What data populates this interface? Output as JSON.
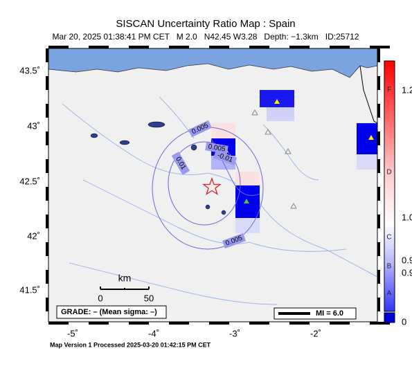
{
  "header": {
    "title": "SISCAN Uncertainty Ratio Map : Spain",
    "subtitle": "Mar 20, 2025 01:38:41 PM CET   M 2.0   N42.45 W3.28   Depth: −1.3km   ID:25712"
  },
  "map": {
    "lat_labels": [
      "43.5˚",
      "43˚",
      "42.5˚",
      "42˚",
      "41.5˚"
    ],
    "lon_labels": [
      "-5˚",
      "-4˚",
      "-3˚",
      "-2˚"
    ],
    "contour_labels": [
      "0.005",
      "0.005",
      "-0.01",
      "0.01",
      "0.005"
    ]
  },
  "colorbar": {
    "grades": [
      "F",
      "D",
      "C",
      "B",
      "A"
    ],
    "labels": [
      "1.2",
      "1.0",
      "0.9",
      "0.9",
      "0"
    ]
  },
  "scale": {
    "unit": "km",
    "ticks": [
      "0",
      "50"
    ]
  },
  "legend": {
    "grade": "GRADE: – (Mean sigma: –)",
    "magnitude": "MI = 6.0"
  },
  "footer": "Map Version 1 Processed 2025-03-20 01:42:15 PM CET"
}
